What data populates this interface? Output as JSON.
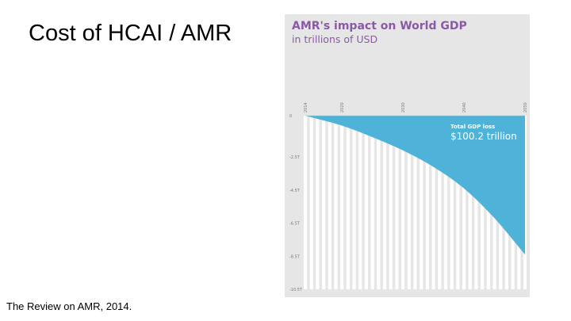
{
  "slide": {
    "title": "Cost of HCAI / AMR",
    "citation": "The Review on AMR, 2014."
  },
  "chart_data": {
    "type": "area",
    "title": "AMR's impact on World GDP",
    "subtitle": "in trillions of USD",
    "x_ticks": [
      "2014",
      "2020",
      "2030",
      "2040",
      "2050"
    ],
    "y_ticks": [
      {
        "value": 0,
        "label": "0"
      },
      {
        "value": -2.5,
        "label": "-2.5T"
      },
      {
        "value": -4.5,
        "label": "-4.5T"
      },
      {
        "value": -6.5,
        "label": "-6.5T"
      },
      {
        "value": -8.5,
        "label": "-8.5T"
      },
      {
        "value": -10.5,
        "label": "-10.5T"
      }
    ],
    "x": [
      2014,
      2020,
      2025,
      2030,
      2035,
      2040,
      2045,
      2050
    ],
    "series": [
      {
        "values": [
          0,
          -0.6,
          -1.3,
          -2.1,
          -3.1,
          -4.4,
          -6.2,
          -8.4
        ]
      }
    ],
    "xlim": [
      2014,
      2050
    ],
    "ylim": [
      -10.5,
      0
    ],
    "annotation": {
      "label": "Total GDP loss",
      "value": "$100.2 trillion"
    },
    "colors": {
      "area": "#4fb3d9",
      "background": "#e6e6e6",
      "title": "#8a5aa6",
      "bars": "#ffffff"
    }
  }
}
